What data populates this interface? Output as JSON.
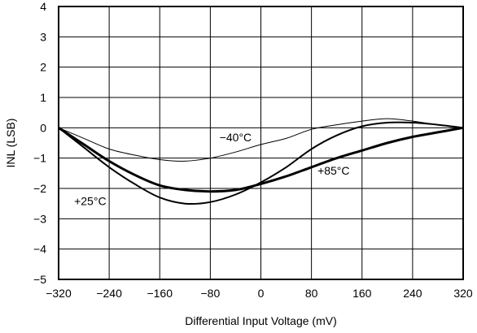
{
  "chart_data": {
    "type": "line",
    "xlabel": "Differential Input Voltage (mV)",
    "ylabel": "INL (LSB)",
    "xlim": [
      -320,
      320
    ],
    "ylim": [
      -5,
      4
    ],
    "xticks": [
      -320,
      -240,
      -160,
      -80,
      0,
      80,
      160,
      240,
      320
    ],
    "yticks": [
      4,
      3,
      2,
      1,
      0,
      -1,
      -2,
      -3,
      -4,
      -5
    ],
    "xtick_labels": [
      "−320",
      "−240",
      "−160",
      "−80",
      "0",
      "80",
      "160",
      "240",
      "320"
    ],
    "ytick_labels": [
      "4",
      "3",
      "2",
      "1",
      "0",
      "−1",
      "−2",
      "−3",
      "−4",
      "−5"
    ],
    "grid": true,
    "series": [
      {
        "name": "−40°C",
        "stroke_width": 1,
        "x": [
          -320,
          -280,
          -240,
          -200,
          -160,
          -120,
          -80,
          -40,
          0,
          40,
          80,
          120,
          160,
          200,
          240,
          280,
          320
        ],
        "y": [
          0,
          -0.35,
          -0.7,
          -0.9,
          -1.05,
          -1.1,
          -1.0,
          -0.8,
          -0.55,
          -0.35,
          -0.05,
          0.1,
          0.22,
          0.3,
          0.22,
          0.1,
          0
        ]
      },
      {
        "name": "+25°C",
        "stroke_width": 2,
        "x": [
          -320,
          -280,
          -240,
          -200,
          -160,
          -120,
          -80,
          -40,
          0,
          40,
          80,
          120,
          160,
          200,
          240,
          280,
          320
        ],
        "y": [
          0,
          -0.65,
          -1.3,
          -1.85,
          -2.3,
          -2.5,
          -2.45,
          -2.2,
          -1.8,
          -1.3,
          -0.7,
          -0.25,
          0.05,
          0.17,
          0.17,
          0.1,
          0
        ]
      },
      {
        "name": "+85°C",
        "stroke_width": 3,
        "x": [
          -320,
          -280,
          -240,
          -200,
          -160,
          -120,
          -80,
          -40,
          0,
          40,
          80,
          120,
          160,
          200,
          240,
          280,
          320
        ],
        "y": [
          0,
          -0.55,
          -1.1,
          -1.55,
          -1.9,
          -2.05,
          -2.1,
          -2.05,
          -1.85,
          -1.6,
          -1.3,
          -1.0,
          -0.75,
          -0.5,
          -0.3,
          -0.15,
          0
        ]
      }
    ],
    "annotations": [
      {
        "text": "−40°C",
        "x": -40,
        "y": -0.45
      },
      {
        "text": "+85°C",
        "x": 115,
        "y": -1.55
      },
      {
        "text": "+25°C",
        "x": -270,
        "y": -2.55
      }
    ]
  }
}
